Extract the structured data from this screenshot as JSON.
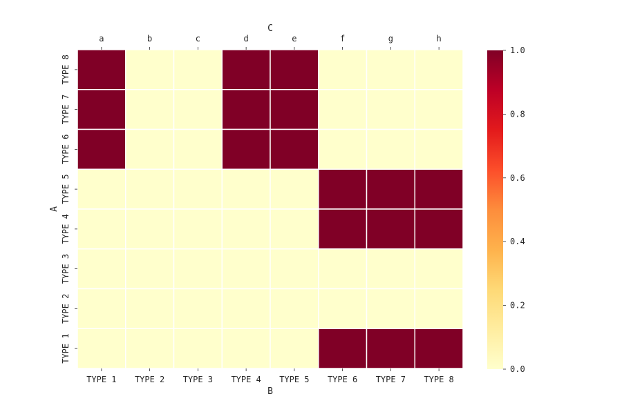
{
  "chart_data": {
    "type": "heatmap",
    "title": "",
    "xlabel": "B",
    "ylabel": "A",
    "top_xlabel": "C",
    "x_categories": [
      "TYPE 1",
      "TYPE 2",
      "TYPE 3",
      "TYPE 4",
      "TYPE 5",
      "TYPE 6",
      "TYPE 7",
      "TYPE 8"
    ],
    "top_categories": [
      "a",
      "b",
      "c",
      "d",
      "e",
      "f",
      "g",
      "h"
    ],
    "y_categories": [
      "TYPE 8",
      "TYPE 7",
      "TYPE 6",
      "TYPE 5",
      "TYPE 4",
      "TYPE 3",
      "TYPE 2",
      "TYPE 1"
    ],
    "values": [
      [
        1,
        0,
        0,
        1,
        1,
        0,
        0,
        0
      ],
      [
        1,
        0,
        0,
        1,
        1,
        0,
        0,
        0
      ],
      [
        1,
        0,
        0,
        1,
        1,
        0,
        0,
        0
      ],
      [
        0,
        0,
        0,
        0,
        0,
        1,
        1,
        1
      ],
      [
        0,
        0,
        0,
        0,
        0,
        1,
        1,
        1
      ],
      [
        0,
        0,
        0,
        0,
        0,
        0,
        0,
        0
      ],
      [
        0,
        0,
        0,
        0,
        0,
        0,
        0,
        0
      ],
      [
        0,
        0,
        0,
        0,
        0,
        1,
        1,
        1
      ]
    ],
    "colorbar": {
      "min": 0,
      "max": 1,
      "ticks": [
        "0.0",
        "0.2",
        "0.4",
        "0.6",
        "0.8",
        "1.0"
      ],
      "colormap": "YlOrRd",
      "stops": [
        "#ffffcc",
        "#ffeda0",
        "#fed976",
        "#feb24c",
        "#fd8d3c",
        "#fc4e2a",
        "#e31a1c",
        "#bd0026",
        "#800026"
      ]
    },
    "grid_line_color": "#ffffff",
    "legend": "none"
  }
}
